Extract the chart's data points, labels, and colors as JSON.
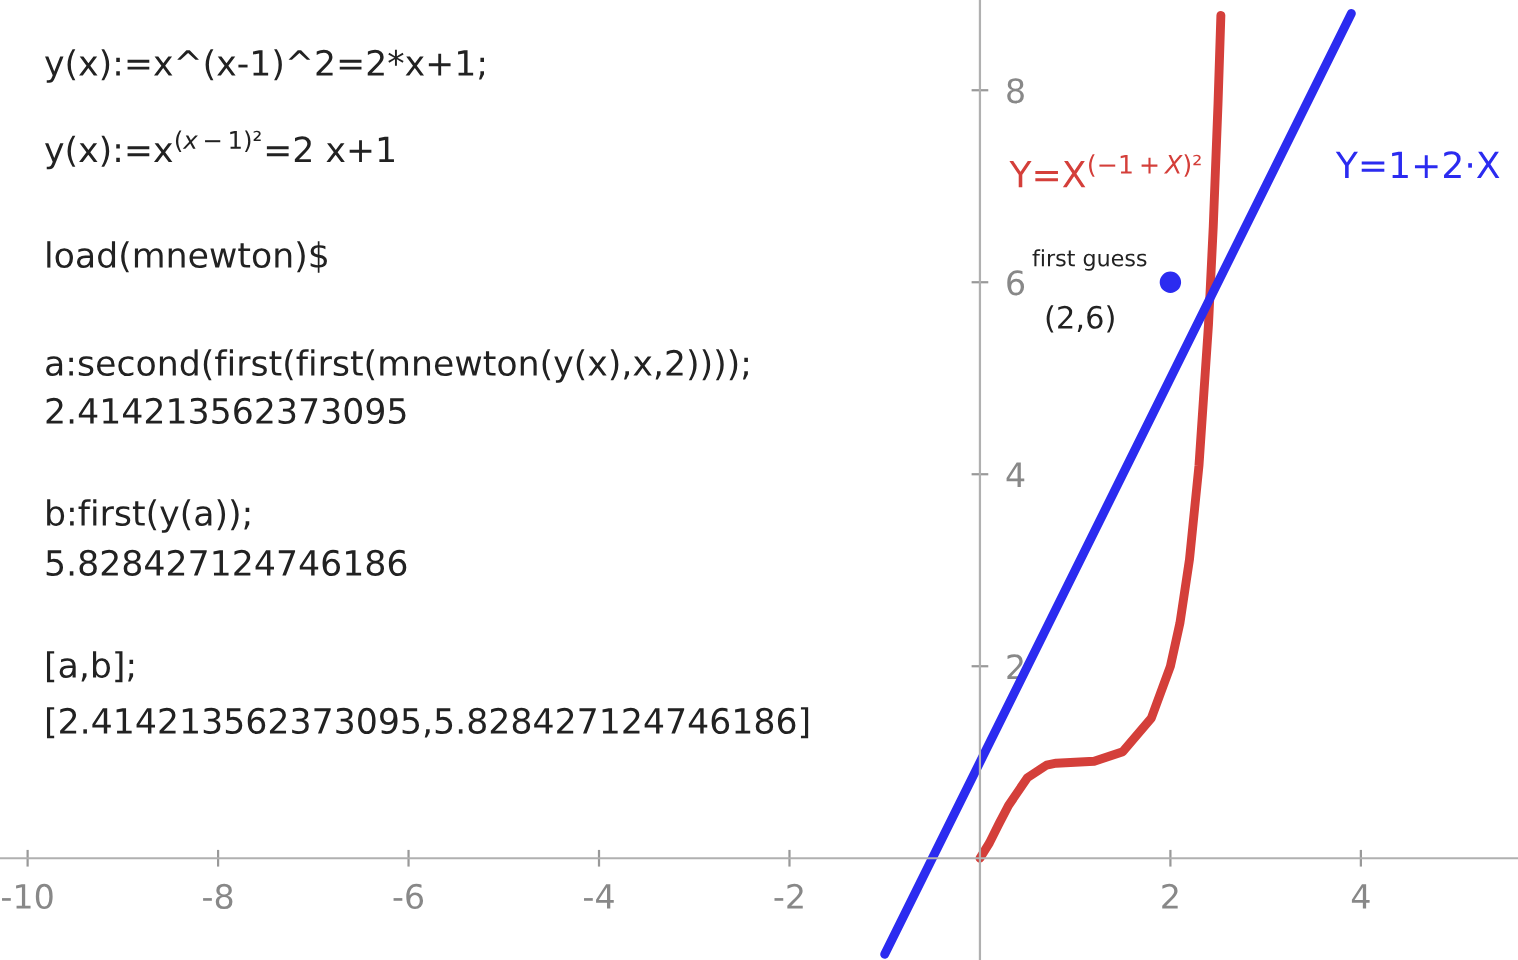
{
  "chart_data": {
    "type": "line",
    "xlim": [
      -10.29,
      5.65
    ],
    "ylim": [
      -1.06,
      8.94
    ],
    "xticks": [
      -10,
      -8,
      -6,
      -4,
      -2,
      2,
      4
    ],
    "yticks": [
      2,
      4,
      6,
      8
    ],
    "grid": false,
    "marker": "none",
    "series": [
      {
        "name": "Y=X$^{(−1+X)²}$",
        "color": "#d43f3a",
        "x": [
          0,
          0.1,
          0.2,
          0.3,
          0.5,
          0.7,
          0.8,
          1,
          1.2,
          1.5,
          1.8,
          2,
          2.1,
          2.2,
          2.3,
          2.4,
          2.45,
          2.5,
          2.53
        ],
        "values": [
          0,
          0.16,
          0.36,
          0.55,
          0.84,
          0.97,
          0.99,
          1,
          1.01,
          1.11,
          1.46,
          2,
          2.45,
          3.11,
          4.09,
          5.56,
          6.58,
          7.86,
          8.78
        ]
      },
      {
        "name": "Y=1+2·X",
        "color": "#2b2bf0",
        "x": [
          -1,
          3.9
        ],
        "values": [
          -1,
          8.8
        ]
      },
      {
        "type": "scatter",
        "marker": "circle",
        "color": "#2b2bf0",
        "x": [
          2
        ],
        "values": [
          6
        ]
      }
    ],
    "annotations": [
      "y(x):=x^(x-1)^2=2*x+1;",
      "y(x):=x$^{(x−1)²}$=2 x+1",
      "load(mnewton)$",
      "a:second(first(first(mnewton(y(x),x,2))));",
      "2.414213562373095",
      "b:first(y(a));",
      "5.828427124746186",
      "[a,b];",
      "[2.414213562373095,5.828427124746186]",
      "first guess",
      "(2,6)"
    ]
  }
}
